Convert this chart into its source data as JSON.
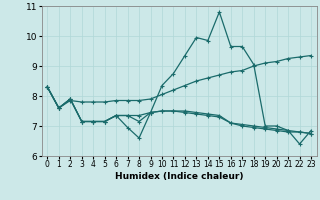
{
  "xlabel": "Humidex (Indice chaleur)",
  "ylabel": "",
  "xlim": [
    -0.5,
    23.5
  ],
  "ylim": [
    6,
    11
  ],
  "yticks": [
    6,
    7,
    8,
    9,
    10,
    11
  ],
  "xticks": [
    0,
    1,
    2,
    3,
    4,
    5,
    6,
    7,
    8,
    9,
    10,
    11,
    12,
    13,
    14,
    15,
    16,
    17,
    18,
    19,
    20,
    21,
    22,
    23
  ],
  "bg_color": "#cce8e8",
  "grid_color": "#b0d8d8",
  "line_color": "#1a6b6b",
  "line1_x": [
    0,
    1,
    2,
    3,
    4,
    5,
    6,
    7,
    8,
    9,
    10,
    11,
    12,
    13,
    14,
    15,
    16,
    17,
    18,
    19,
    20,
    21,
    22,
    23
  ],
  "line1_y": [
    8.3,
    7.6,
    7.9,
    7.15,
    7.15,
    7.15,
    7.35,
    6.95,
    6.6,
    7.45,
    8.35,
    8.75,
    9.35,
    9.95,
    9.85,
    10.8,
    9.65,
    9.65,
    9.05,
    7.0,
    7.0,
    6.85,
    6.4,
    6.85
  ],
  "line2_x": [
    0,
    1,
    2,
    3,
    4,
    5,
    6,
    7,
    8,
    9,
    10,
    11,
    12,
    13,
    14,
    15,
    16,
    17,
    18,
    19,
    20,
    21,
    22,
    23
  ],
  "line2_y": [
    8.3,
    7.6,
    7.85,
    7.8,
    7.8,
    7.8,
    7.85,
    7.85,
    7.85,
    7.9,
    8.05,
    8.2,
    8.35,
    8.5,
    8.6,
    8.7,
    8.8,
    8.85,
    9.0,
    9.1,
    9.15,
    9.25,
    9.3,
    9.35
  ],
  "line3_x": [
    0,
    1,
    2,
    3,
    4,
    5,
    6,
    7,
    8,
    9,
    10,
    11,
    12,
    13,
    14,
    15,
    16,
    17,
    18,
    19,
    20,
    21,
    22,
    23
  ],
  "line3_y": [
    8.3,
    7.6,
    7.9,
    7.15,
    7.15,
    7.15,
    7.35,
    7.35,
    7.35,
    7.45,
    7.5,
    7.5,
    7.5,
    7.45,
    7.4,
    7.35,
    7.1,
    7.05,
    7.0,
    6.95,
    6.9,
    6.85,
    6.8,
    6.75
  ],
  "line4_x": [
    0,
    1,
    2,
    3,
    4,
    5,
    6,
    7,
    8,
    9,
    10,
    11,
    12,
    13,
    14,
    15,
    16,
    17,
    18,
    19,
    20,
    21,
    22,
    23
  ],
  "line4_y": [
    8.3,
    7.6,
    7.9,
    7.15,
    7.15,
    7.15,
    7.35,
    7.35,
    7.15,
    7.45,
    7.5,
    7.5,
    7.45,
    7.4,
    7.35,
    7.3,
    7.1,
    7.0,
    6.95,
    6.9,
    6.85,
    6.8,
    6.8,
    6.75
  ]
}
